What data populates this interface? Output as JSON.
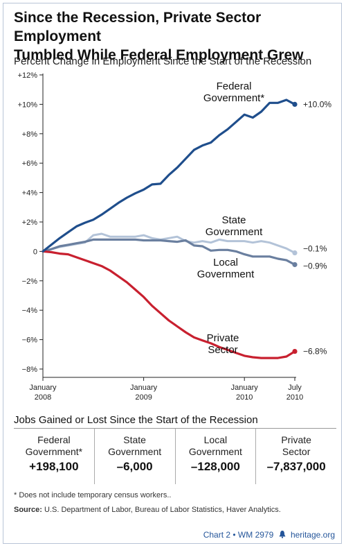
{
  "title_line1": "Since the Recession, Private Sector Employment",
  "title_line2": "Tumbled While Federal Employment Grew",
  "chart_data": {
    "type": "line",
    "title": "Percent Change in Employment Since the Start of the Recession",
    "xlabel": "",
    "ylabel": "",
    "ylim": [
      -8,
      12
    ],
    "yticks": [
      "+12%",
      "+10%",
      "+8%",
      "+6%",
      "+4%",
      "+2%",
      "0",
      "−2%",
      "−4%",
      "−6%",
      "−8%"
    ],
    "ytick_values": [
      12,
      10,
      8,
      6,
      4,
      2,
      0,
      -2,
      -4,
      -6,
      -8
    ],
    "xticks": [
      {
        "line1": "January",
        "line2": "2008",
        "month": 0
      },
      {
        "line1": "January",
        "line2": "2009",
        "month": 12
      },
      {
        "line1": "January",
        "line2": "2010",
        "month": 24
      },
      {
        "line1": "July",
        "line2": "2010",
        "month": 30
      }
    ],
    "x_months": [
      0,
      1,
      2,
      3,
      4,
      5,
      6,
      7,
      8,
      9,
      10,
      11,
      12,
      13,
      14,
      15,
      16,
      17,
      18,
      19,
      20,
      21,
      22,
      23,
      24,
      25,
      26,
      27,
      28,
      29,
      30
    ],
    "grid": false,
    "series": [
      {
        "name_line1": "Federal",
        "name_line2": "Government*",
        "color": "#1f4e8c",
        "end_label": "+10.0%",
        "values": [
          0,
          0.45,
          0.9,
          1.3,
          1.7,
          1.95,
          2.15,
          2.5,
          2.9,
          3.3,
          3.65,
          3.95,
          4.2,
          4.55,
          4.6,
          5.2,
          5.7,
          6.3,
          6.9,
          7.2,
          7.4,
          7.9,
          8.3,
          8.8,
          9.3,
          9.1,
          9.5,
          10.1,
          10.1,
          10.3,
          10.0
        ]
      },
      {
        "name_line1": "State",
        "name_line2": "Government",
        "color": "#b3c3d8",
        "end_label": "−0.1%",
        "values": [
          0,
          0.15,
          0.3,
          0.4,
          0.5,
          0.6,
          1.1,
          1.2,
          1.0,
          1.0,
          1.0,
          1.0,
          1.1,
          0.9,
          0.8,
          0.9,
          1.0,
          0.7,
          0.6,
          0.7,
          0.6,
          0.8,
          0.7,
          0.7,
          0.7,
          0.6,
          0.7,
          0.6,
          0.4,
          0.2,
          -0.1
        ]
      },
      {
        "name_line1": "Local",
        "name_line2": "Government",
        "color": "#6a7f9f",
        "end_label": "−0.9%",
        "values": [
          0,
          0.15,
          0.35,
          0.45,
          0.55,
          0.65,
          0.8,
          0.8,
          0.8,
          0.8,
          0.8,
          0.8,
          0.75,
          0.75,
          0.75,
          0.7,
          0.65,
          0.75,
          0.4,
          0.35,
          0.05,
          0.1,
          0.1,
          0.0,
          -0.2,
          -0.35,
          -0.35,
          -0.35,
          -0.5,
          -0.6,
          -0.9
        ]
      },
      {
        "name_line1": "Private",
        "name_line2": "Sector",
        "color": "#c8202f",
        "end_label": "−6.8%",
        "values": [
          0,
          -0.05,
          -0.15,
          -0.2,
          -0.4,
          -0.6,
          -0.8,
          -1.0,
          -1.3,
          -1.7,
          -2.1,
          -2.6,
          -3.1,
          -3.7,
          -4.2,
          -4.7,
          -5.1,
          -5.5,
          -5.85,
          -6.05,
          -6.25,
          -6.5,
          -6.7,
          -6.9,
          -7.1,
          -7.2,
          -7.25,
          -7.25,
          -7.25,
          -7.15,
          -6.8
        ]
      }
    ]
  },
  "jobs": {
    "title": "Jobs Gained or Lost Since the Start of the Recession",
    "cells": [
      {
        "line1": "Federal",
        "line2": "Government*",
        "value": "+198,100"
      },
      {
        "line1": "State",
        "line2": "Government",
        "value": "–6,000"
      },
      {
        "line1": "Local",
        "line2": "Government",
        "value": "–128,000"
      },
      {
        "line1": "Private",
        "line2": "Sector",
        "value": "–7,837,000"
      }
    ]
  },
  "footnote": "* Does not include temporary census workers..",
  "source_label": "Source:",
  "source_text": " U.S. Department of Labor, Bureau of Labor Statistics, Haver Analytics.",
  "credit": "Chart 2 • WM 2979",
  "credit_site": "heritage.org",
  "bell_icon": "liberty-bell-icon"
}
